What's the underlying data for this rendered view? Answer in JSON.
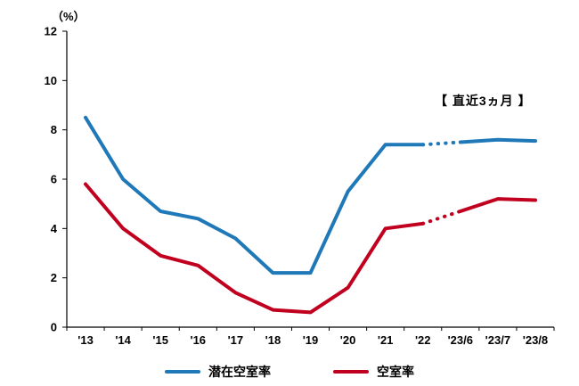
{
  "chart_data": {
    "type": "line",
    "title": "",
    "unit_label": "（%）",
    "annotation": "【 直近3ヵ月 】",
    "categories": [
      "'13",
      "'14",
      "'15",
      "'16",
      "'17",
      "'18",
      "'19",
      "'20",
      "'21",
      "'22",
      "'23/6",
      "'23/7",
      "'23/8"
    ],
    "series": [
      {
        "name": "潜在空室率",
        "color": "#1F78B8",
        "values": [
          8.5,
          6.0,
          4.7,
          4.4,
          3.6,
          2.2,
          2.2,
          5.5,
          7.4,
          7.4,
          7.5,
          7.6,
          7.55
        ],
        "dotted_segment": [
          9,
          10
        ]
      },
      {
        "name": "空室率",
        "color": "#C0001E",
        "values": [
          5.8,
          4.0,
          2.9,
          2.5,
          1.4,
          0.7,
          0.6,
          1.6,
          4.0,
          4.2,
          4.7,
          5.2,
          5.15
        ],
        "dotted_segment": [
          9,
          10
        ]
      }
    ],
    "ylim": [
      0,
      12
    ],
    "ytick_step": 2,
    "xlabel": "",
    "ylabel": "",
    "grid": false,
    "legend_position": "bottom",
    "axis_color": "#000000"
  }
}
